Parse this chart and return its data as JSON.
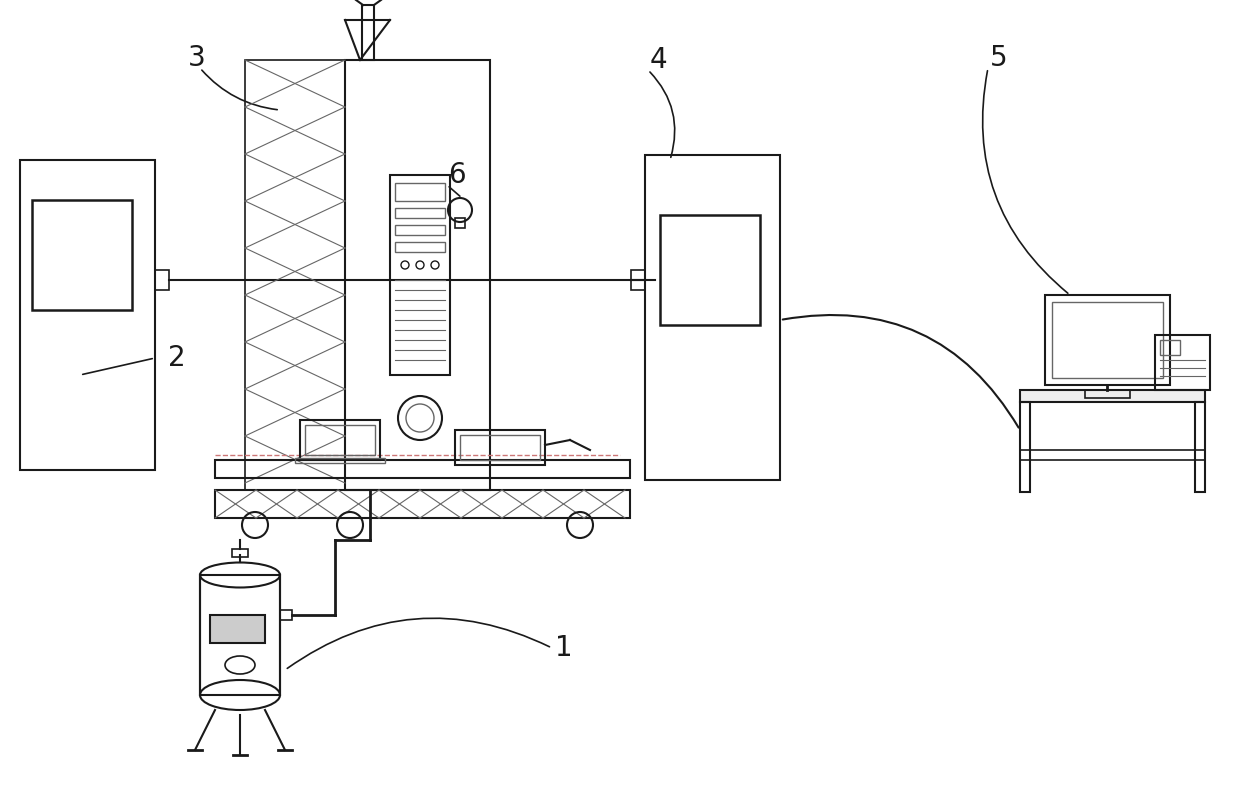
{
  "bg_color": "#ffffff",
  "line_color": "#1a1a1a",
  "gray_color": "#666666",
  "light_gray": "#999999",
  "label_font_size": 20,
  "fig_width": 12.4,
  "fig_height": 7.88,
  "dpi": 100
}
